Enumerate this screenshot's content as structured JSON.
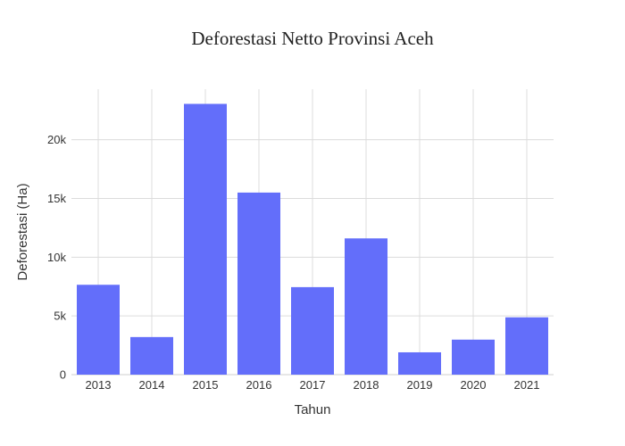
{
  "chart_data": {
    "type": "bar",
    "title": "Deforestasi Netto Provinsi Aceh",
    "xlabel": "Tahun",
    "ylabel": "Deforestasi (Ha)",
    "categories": [
      "2013",
      "2014",
      "2015",
      "2016",
      "2017",
      "2018",
      "2019",
      "2020",
      "2021"
    ],
    "values": [
      7650,
      3200,
      23050,
      15500,
      7450,
      11600,
      1900,
      2980,
      4880
    ],
    "ylim": [
      0,
      24300
    ],
    "yticks": [
      0,
      5000,
      10000,
      15000,
      20000
    ],
    "ytick_labels": [
      "0",
      "5k",
      "10k",
      "15k",
      "20k"
    ],
    "bar_color": "#636efa",
    "grid": true,
    "legend": "none"
  }
}
